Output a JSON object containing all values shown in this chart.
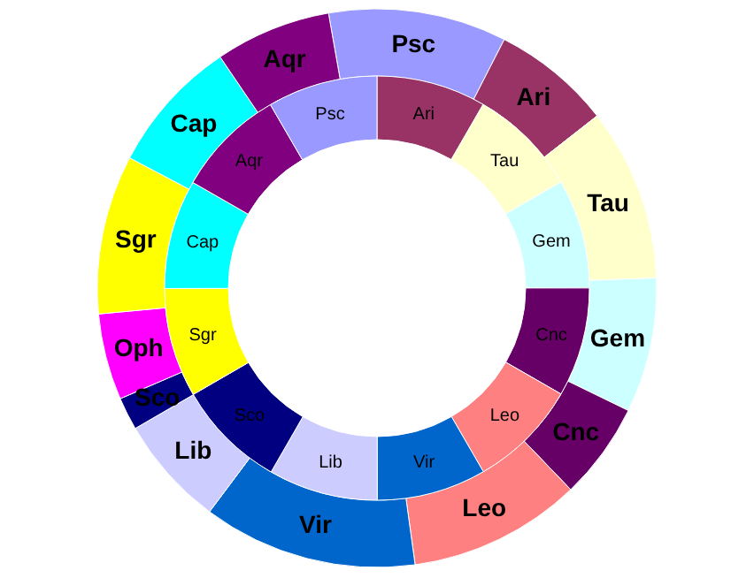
{
  "chart_data": [
    {
      "type": "donut",
      "categories": [
        "Psc",
        "Ari",
        "Tau",
        "Gem",
        "Cnc",
        "Leo",
        "Vir",
        "Lib",
        "Sco",
        "Oph",
        "Sgr",
        "Cap",
        "Aqr"
      ],
      "values": [
        10.3,
        6.9,
        10.0,
        7.8,
        5.6,
        10.0,
        12.4,
        6.4,
        1.9,
        5.0,
        9.2,
        7.8,
        6.7
      ],
      "colors": [
        "#9999ff",
        "#993366",
        "#ffffcc",
        "#ccffff",
        "#660066",
        "#ff8080",
        "#0066cc",
        "#ccccff",
        "#000080",
        "#ff00ff",
        "#ffff00",
        "#00ffff",
        "#800080"
      ]
    },
    {
      "type": "donut",
      "categories": [
        "Ari",
        "Tau",
        "Gem",
        "Cnc",
        "Leo",
        "Vir",
        "Lib",
        "Sco",
        "Sgr",
        "Cap",
        "Aqr",
        "Psc"
      ],
      "values": [
        8.33,
        8.33,
        8.33,
        8.33,
        8.33,
        8.33,
        8.33,
        8.33,
        8.33,
        8.33,
        8.33,
        8.37
      ],
      "colors": [
        "#993366",
        "#ffffcc",
        "#ccffff",
        "#660066",
        "#ff8080",
        "#0066cc",
        "#ccccff",
        "#000080",
        "#ffff00",
        "#00ffff",
        "#800080",
        "#9999ff"
      ]
    }
  ]
}
